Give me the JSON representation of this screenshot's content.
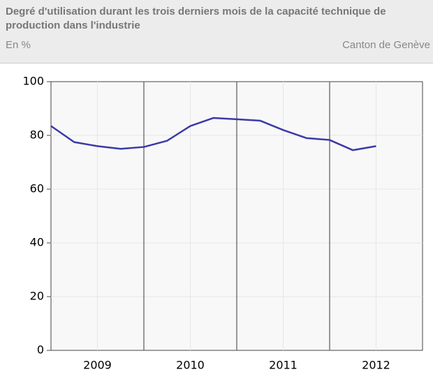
{
  "chart_data": {
    "type": "line",
    "title": "Degré d'utilisation durant les trois derniers mois de la capacité technique de production dans l'industrie",
    "subtitle": "En %",
    "source": "Canton de Genève",
    "categories": [
      null,
      null,
      "2009",
      null,
      null,
      null,
      "2010",
      null,
      null,
      null,
      "2011",
      null,
      null,
      null,
      "2012"
    ],
    "series": [
      {
        "name": "Canton de Genève",
        "color": "#3a3aa8",
        "values": [
          83.5,
          77.5,
          76,
          75,
          75.7,
          78,
          83.5,
          86.5,
          86,
          85.5,
          82,
          79,
          78.3,
          74.5,
          76
        ]
      }
    ],
    "ylim": [
      0,
      100
    ],
    "yticks": [
      0,
      20,
      40,
      60,
      80,
      100
    ],
    "grid": true
  }
}
